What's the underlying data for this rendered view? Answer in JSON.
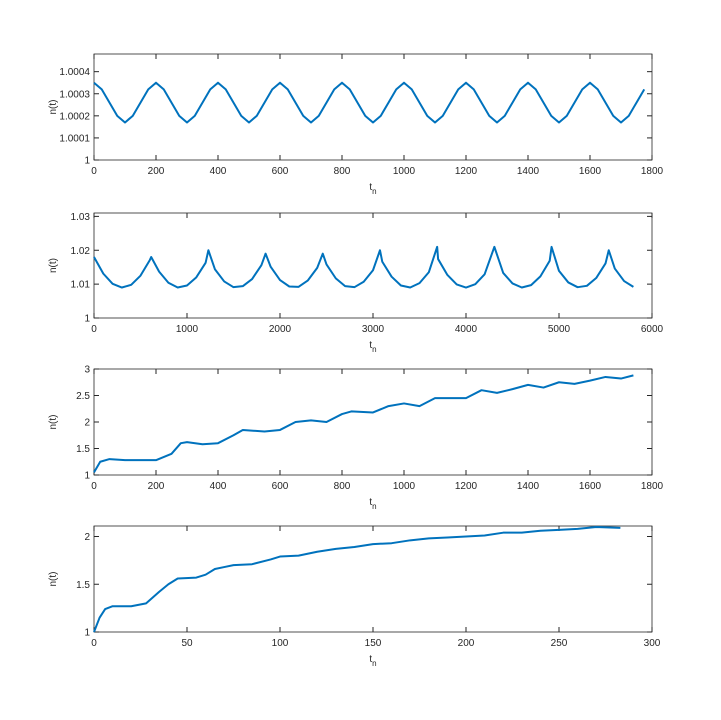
{
  "chart_data": [
    {
      "type": "line",
      "ylabel": "n(t)",
      "xlabel": "t",
      "xlabel_subscript": "n",
      "color": "#0072bd",
      "xlim": [
        0,
        1800
      ],
      "xticks": [
        0,
        200,
        400,
        600,
        800,
        1000,
        1200,
        1400,
        1600,
        1800
      ],
      "ylim": [
        1,
        1.00048
      ],
      "yticks": [
        1,
        1.0001,
        1.0002,
        1.0003,
        1.0004
      ],
      "x": [
        0,
        25,
        50,
        75,
        100,
        125,
        150,
        175,
        200,
        225,
        250,
        275,
        300,
        325,
        350,
        375,
        400,
        425,
        450,
        475,
        500,
        525,
        550,
        575,
        600,
        625,
        650,
        675,
        700,
        725,
        750,
        775,
        800,
        825,
        850,
        875,
        900,
        925,
        950,
        975,
        1000,
        1025,
        1050,
        1075,
        1100,
        1125,
        1150,
        1175,
        1200,
        1225,
        1250,
        1275,
        1300,
        1325,
        1350,
        1375,
        1400,
        1425,
        1450,
        1475,
        1500,
        1525,
        1550,
        1575,
        1600,
        1625,
        1650,
        1675,
        1700,
        1725,
        1750,
        1775
      ],
      "values": [
        1.00035,
        1.00032,
        1.00026,
        1.0002,
        1.00017,
        1.0002,
        1.00026,
        1.00032,
        1.00035,
        1.00032,
        1.00026,
        1.0002,
        1.00017,
        1.0002,
        1.00026,
        1.00032,
        1.00035,
        1.00032,
        1.00026,
        1.0002,
        1.00017,
        1.0002,
        1.00026,
        1.00032,
        1.00035,
        1.00032,
        1.00026,
        1.0002,
        1.00017,
        1.0002,
        1.00026,
        1.00032,
        1.00035,
        1.00032,
        1.00026,
        1.0002,
        1.00017,
        1.0002,
        1.00026,
        1.00032,
        1.00035,
        1.00032,
        1.00026,
        1.0002,
        1.00017,
        1.0002,
        1.00026,
        1.00032,
        1.00035,
        1.00032,
        1.00026,
        1.0002,
        1.00017,
        1.0002,
        1.00026,
        1.00032,
        1.00035,
        1.00032,
        1.00026,
        1.0002,
        1.00017,
        1.0002,
        1.00026,
        1.00032,
        1.00035,
        1.00032,
        1.00026,
        1.0002,
        1.00017,
        1.0002,
        1.00026,
        1.00032
      ]
    },
    {
      "type": "line",
      "ylabel": "n(t)",
      "xlabel": "t",
      "xlabel_subscript": "n",
      "color": "#0072bd",
      "xlim": [
        0,
        6000
      ],
      "xticks": [
        0,
        1000,
        2000,
        3000,
        4000,
        5000,
        6000
      ],
      "ylim": [
        1,
        1.031
      ],
      "yticks": [
        1,
        1.01,
        1.02,
        1.03
      ],
      "x": [
        0,
        100,
        200,
        300,
        400,
        500,
        600,
        615,
        700,
        800,
        900,
        1000,
        1100,
        1200,
        1230,
        1300,
        1400,
        1500,
        1600,
        1700,
        1800,
        1845,
        1900,
        2000,
        2100,
        2200,
        2300,
        2400,
        2460,
        2500,
        2600,
        2700,
        2800,
        2900,
        3000,
        3075,
        3100,
        3200,
        3300,
        3400,
        3500,
        3600,
        3690,
        3700,
        3800,
        3900,
        4000,
        4100,
        4200,
        4305,
        4400,
        4500,
        4600,
        4700,
        4800,
        4900,
        4920,
        5000,
        5100,
        5200,
        5300,
        5400,
        5500,
        5535,
        5600,
        5700,
        5800
      ],
      "values": [
        1.018,
        1.0131,
        1.0101,
        1.009,
        1.0098,
        1.0125,
        1.0171,
        1.018,
        1.0137,
        1.0104,
        1.009,
        1.0096,
        1.012,
        1.0163,
        1.02,
        1.0144,
        1.0108,
        1.0091,
        1.0094,
        1.0115,
        1.0156,
        1.019,
        1.0151,
        1.0112,
        1.0093,
        1.0092,
        1.0111,
        1.0148,
        1.019,
        1.0158,
        1.0117,
        1.0094,
        1.0091,
        1.0107,
        1.0141,
        1.02,
        1.0166,
        1.0122,
        1.0096,
        1.009,
        1.0103,
        1.0135,
        1.021,
        1.0174,
        1.0127,
        1.0099,
        1.009,
        1.01,
        1.0129,
        1.021,
        1.0133,
        1.0102,
        1.009,
        1.0097,
        1.0123,
        1.0169,
        1.021,
        1.0139,
        1.0105,
        1.0091,
        1.0095,
        1.0118,
        1.0161,
        1.02,
        1.0146,
        1.0109,
        1.0092
      ]
    },
    {
      "type": "line",
      "ylabel": "n(t)",
      "xlabel": "t",
      "xlabel_subscript": "n",
      "color": "#0072bd",
      "xlim": [
        0,
        1800
      ],
      "xticks": [
        0,
        200,
        400,
        600,
        800,
        1000,
        1200,
        1400,
        1600,
        1800
      ],
      "ylim": [
        1,
        3
      ],
      "yticks": [
        1,
        1.5,
        2,
        2.5,
        3
      ],
      "x": [
        0,
        20,
        50,
        100,
        200,
        250,
        280,
        300,
        350,
        400,
        450,
        480,
        550,
        600,
        650,
        700,
        750,
        800,
        830,
        900,
        950,
        1000,
        1050,
        1100,
        1150,
        1200,
        1250,
        1300,
        1350,
        1400,
        1450,
        1500,
        1550,
        1600,
        1650,
        1700,
        1740
      ],
      "values": [
        1.05,
        1.25,
        1.3,
        1.28,
        1.28,
        1.4,
        1.6,
        1.62,
        1.58,
        1.6,
        1.75,
        1.85,
        1.82,
        1.85,
        2.0,
        2.03,
        2.0,
        2.15,
        2.2,
        2.18,
        2.3,
        2.35,
        2.3,
        2.45,
        2.45,
        2.45,
        2.6,
        2.55,
        2.62,
        2.7,
        2.65,
        2.75,
        2.72,
        2.78,
        2.85,
        2.82,
        2.88
      ]
    },
    {
      "type": "line",
      "ylabel": "n(t)",
      "xlabel": "t",
      "xlabel_subscript": "n",
      "color": "#0072bd",
      "xlim": [
        0,
        300
      ],
      "xticks": [
        0,
        50,
        100,
        150,
        200,
        250,
        300
      ],
      "ylim": [
        1,
        2.11
      ],
      "yticks": [
        1,
        1.5,
        2
      ],
      "x": [
        0,
        3,
        6,
        10,
        20,
        28,
        35,
        40,
        45,
        55,
        60,
        65,
        70,
        75,
        85,
        95,
        100,
        110,
        120,
        130,
        140,
        150,
        160,
        170,
        180,
        190,
        200,
        210,
        220,
        230,
        240,
        250,
        260,
        270,
        283
      ],
      "values": [
        1.0,
        1.15,
        1.24,
        1.27,
        1.27,
        1.3,
        1.42,
        1.5,
        1.56,
        1.57,
        1.6,
        1.66,
        1.68,
        1.7,
        1.71,
        1.76,
        1.79,
        1.8,
        1.84,
        1.87,
        1.89,
        1.92,
        1.93,
        1.96,
        1.98,
        1.99,
        2.0,
        2.01,
        2.04,
        2.04,
        2.06,
        2.07,
        2.08,
        2.1,
        2.09
      ]
    }
  ]
}
